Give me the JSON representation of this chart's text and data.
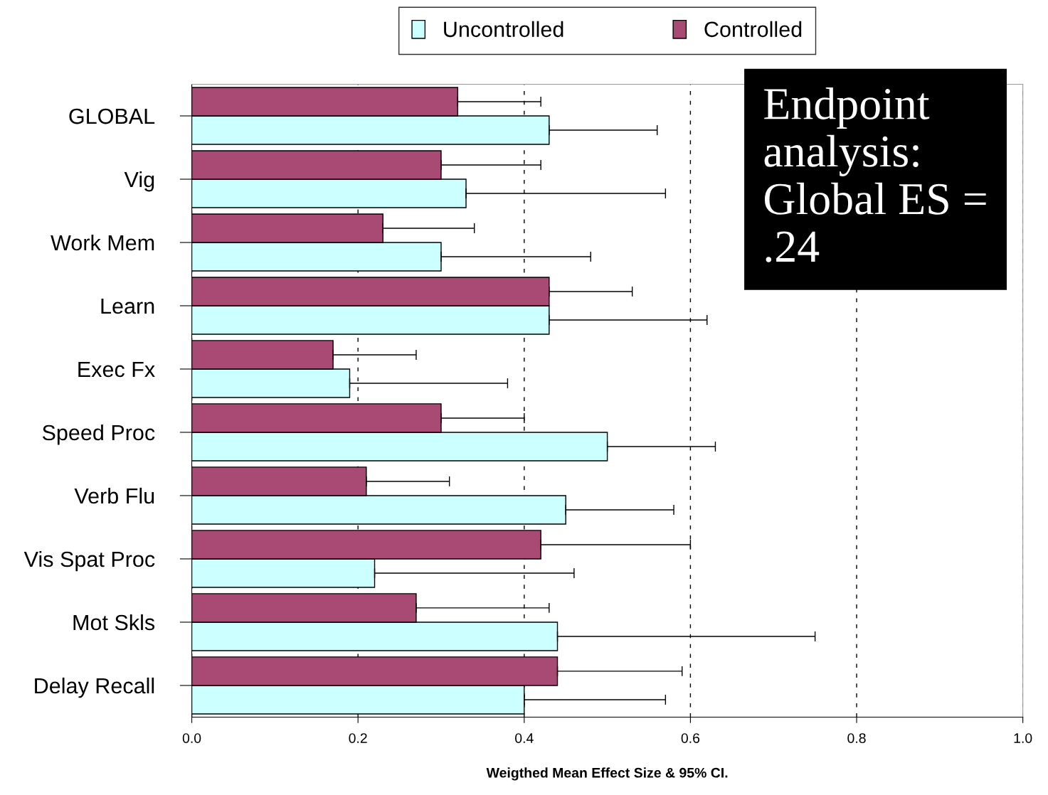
{
  "chart_data": {
    "type": "bar",
    "orientation": "horizontal",
    "categories": [
      "GLOBAL",
      "Vig",
      "Work Mem",
      "Learn",
      "Exec Fx",
      "Speed Proc",
      "Verb Flu",
      "Vis Spat Proc",
      "Mot Skls",
      "Delay Recall"
    ],
    "series": [
      {
        "name": "Uncontrolled",
        "color": "#ccffff",
        "values": [
          0.43,
          0.33,
          0.3,
          0.43,
          0.19,
          0.5,
          0.45,
          0.22,
          0.44,
          0.4
        ],
        "errors": [
          [
            0.43,
            0.56
          ],
          [
            0.33,
            0.57
          ],
          [
            0.3,
            0.48
          ],
          [
            0.43,
            0.62
          ],
          [
            0.19,
            0.38
          ],
          [
            0.5,
            0.63
          ],
          [
            0.45,
            0.58
          ],
          [
            0.22,
            0.46
          ],
          [
            0.44,
            0.75
          ],
          [
            0.4,
            0.57
          ]
        ]
      },
      {
        "name": "Controlled",
        "color": "#a94a75",
        "values": [
          0.32,
          0.3,
          0.23,
          0.43,
          0.17,
          0.3,
          0.21,
          0.42,
          0.27,
          0.44
        ],
        "errors": [
          [
            0.32,
            0.42
          ],
          [
            0.3,
            0.42
          ],
          [
            0.23,
            0.34
          ],
          [
            0.43,
            0.53
          ],
          [
            0.17,
            0.27
          ],
          [
            0.3,
            0.4
          ],
          [
            0.21,
            0.31
          ],
          [
            0.42,
            0.6
          ],
          [
            0.27,
            0.43
          ],
          [
            0.44,
            0.59
          ]
        ]
      }
    ],
    "xlim": [
      0,
      1
    ],
    "xticks": [
      {
        "value": 0,
        "label": "0.0"
      },
      0.2,
      0.4,
      0.6,
      0.8,
      {
        "value": 1,
        "label": "1.0"
      }
    ],
    "xlabel": "Weigthed Mean Effect Size & 95% CI.",
    "grid": "x",
    "legend": "top",
    "annotations": [
      "Endpoint analysis: Global ES = .24"
    ]
  }
}
